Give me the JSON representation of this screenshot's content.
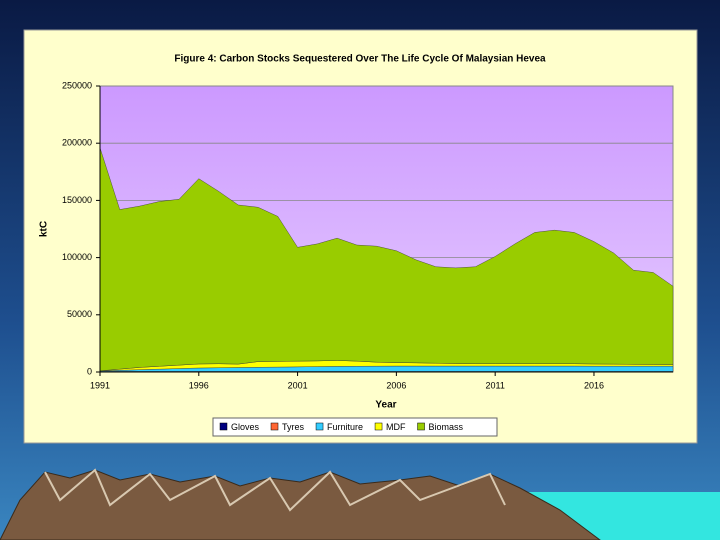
{
  "chart_data": {
    "type": "stacked-area",
    "title": "Figure 4: Carbon Stocks Sequestered Over The Life Cycle Of Malaysian Hevea",
    "x_label": "Year",
    "y_label": "ktC",
    "x": [
      1991,
      1992,
      1993,
      1994,
      1995,
      1996,
      1997,
      1998,
      1999,
      2000,
      2001,
      2002,
      2003,
      2004,
      2005,
      2006,
      2007,
      2008,
      2009,
      2010,
      2011,
      2012,
      2013,
      2014,
      2015,
      2016,
      2017,
      2018,
      2019,
      2020
    ],
    "xlim": [
      1991,
      2020
    ],
    "xticks": [
      1991,
      1996,
      2001,
      2006,
      2011,
      2016
    ],
    "ylim": [
      0,
      250000
    ],
    "yticks": [
      0,
      50000,
      100000,
      150000,
      200000,
      250000
    ],
    "grid": true,
    "legend": "bottom",
    "series": [
      {
        "name": "Gloves",
        "color": "#000080",
        "values": [
          300,
          300,
          300,
          300,
          300,
          300,
          300,
          300,
          300,
          300,
          300,
          300,
          300,
          300,
          300,
          300,
          300,
          300,
          300,
          300,
          300,
          300,
          300,
          300,
          300,
          300,
          300,
          300,
          300,
          300
        ]
      },
      {
        "name": "Tyres",
        "color": "#ff6633",
        "values": [
          200,
          200,
          200,
          200,
          200,
          200,
          200,
          200,
          200,
          200,
          200,
          200,
          200,
          200,
          200,
          200,
          200,
          200,
          200,
          200,
          200,
          200,
          200,
          200,
          200,
          200,
          200,
          200,
          200,
          200
        ]
      },
      {
        "name": "Furniture",
        "color": "#33ccff",
        "values": [
          500,
          1000,
          1500,
          2000,
          2500,
          3000,
          3200,
          3400,
          3600,
          3800,
          4000,
          4200,
          4400,
          4500,
          4600,
          4700,
          4700,
          4700,
          4700,
          4700,
          4700,
          4700,
          4700,
          4700,
          4700,
          4600,
          4600,
          4600,
          4600,
          4600
        ]
      },
      {
        "name": "MDF",
        "color": "#ffff00",
        "values": [
          0,
          1000,
          2000,
          2500,
          3000,
          3500,
          3500,
          3000,
          5000,
          5000,
          5000,
          5000,
          5200,
          4500,
          3500,
          3000,
          2800,
          2500,
          2200,
          2000,
          2000,
          2000,
          2000,
          2000,
          2000,
          1900,
          1800,
          1600,
          1500,
          1400
        ]
      },
      {
        "name": "Biomass",
        "color": "#99cc00",
        "values": [
          195000,
          139500,
          141000,
          144000,
          145000,
          162000,
          150800,
          139100,
          134900,
          126700,
          99500,
          102300,
          106900,
          101500,
          101400,
          97800,
          90000,
          84300,
          83600,
          84800,
          93800,
          104800,
          114800,
          116800,
          114800,
          107000,
          97100,
          82300,
          80400,
          68500
        ]
      }
    ]
  }
}
